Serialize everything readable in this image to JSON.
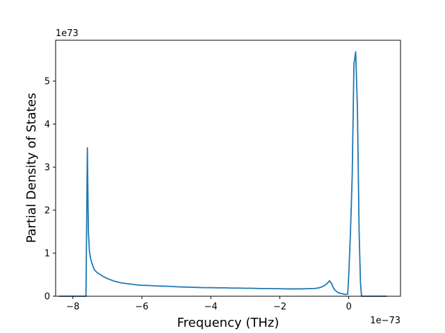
{
  "chart_data": {
    "type": "line",
    "title": "",
    "xlabel": "Frequency (THz)",
    "ylabel": "Partial Density of States",
    "x_offset_text": "1e−73",
    "y_offset_text": "1e73",
    "x_scale_exponent": -73,
    "y_scale_exponent": 73,
    "xlim": [
      -8.5,
      1.5
    ],
    "ylim": [
      0,
      5.95
    ],
    "xticks": [
      -8,
      -6,
      -4,
      -2,
      0
    ],
    "xtick_labels": [
      "−8",
      "−6",
      "−4",
      "−2",
      "0"
    ],
    "yticks": [
      0,
      1,
      2,
      3,
      4,
      5
    ],
    "ytick_labels": [
      "0",
      "1",
      "2",
      "3",
      "4",
      "5"
    ],
    "grid": false,
    "legend": "none",
    "line_color": "#1f77b4",
    "series": [
      {
        "x": [
          -8.4,
          -7.7,
          -7.62,
          -7.58,
          -7.55,
          -7.52,
          -7.48,
          -7.44,
          -7.38,
          -7.3,
          -7.2,
          -7.1,
          -7.0,
          -6.9,
          -6.8,
          -6.7,
          -6.6,
          -6.5,
          -6.4,
          -6.3,
          -6.2,
          -6.1,
          -6.0,
          -5.8,
          -5.6,
          -5.4,
          -5.2,
          -5.0,
          -4.8,
          -4.6,
          -4.4,
          -4.2,
          -4.0,
          -3.8,
          -3.6,
          -3.4,
          -3.2,
          -3.0,
          -2.8,
          -2.6,
          -2.4,
          -2.2,
          -2.0,
          -1.8,
          -1.6,
          -1.4,
          -1.2,
          -1.0,
          -0.9,
          -0.8,
          -0.7,
          -0.62,
          -0.56,
          -0.5,
          -0.45,
          -0.4,
          -0.3,
          -0.2,
          -0.1,
          -0.03,
          0.0,
          0.05,
          0.1,
          0.15,
          0.2,
          0.25,
          0.3,
          0.34,
          0.37,
          0.5,
          0.8,
          1.1
        ],
        "y": [
          0,
          0,
          0,
          3.45,
          1.5,
          1.05,
          0.85,
          0.75,
          0.62,
          0.55,
          0.5,
          0.45,
          0.41,
          0.38,
          0.35,
          0.33,
          0.31,
          0.3,
          0.29,
          0.28,
          0.27,
          0.26,
          0.255,
          0.25,
          0.24,
          0.235,
          0.23,
          0.22,
          0.215,
          0.21,
          0.205,
          0.2,
          0.2,
          0.195,
          0.195,
          0.19,
          0.19,
          0.185,
          0.185,
          0.18,
          0.18,
          0.175,
          0.175,
          0.17,
          0.17,
          0.17,
          0.175,
          0.18,
          0.19,
          0.21,
          0.25,
          0.3,
          0.36,
          0.3,
          0.2,
          0.14,
          0.08,
          0.06,
          0.04,
          0.05,
          0.5,
          1.5,
          2.8,
          5.4,
          5.68,
          4.4,
          1.5,
          0.3,
          0,
          0,
          0,
          0
        ]
      }
    ]
  }
}
